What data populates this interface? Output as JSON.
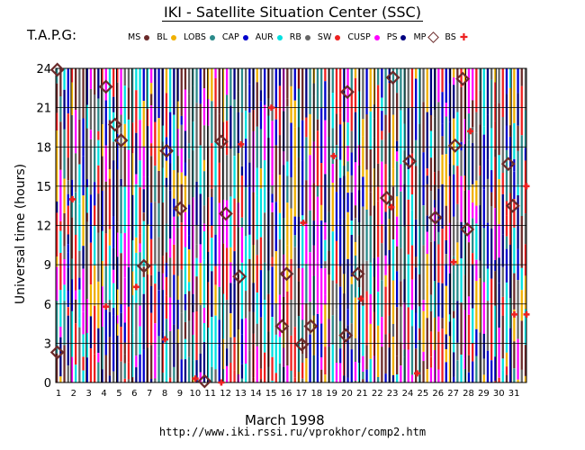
{
  "header": {
    "title": "IKI - Satellite Situation Center (SSC)",
    "code": "T.A.P.G:"
  },
  "legend": [
    {
      "label": "MS",
      "color": "#6b2a2a",
      "shape": "dot"
    },
    {
      "label": "BL",
      "color": "#f0b000",
      "shape": "dot"
    },
    {
      "label": "LOBS",
      "color": "#2a8a8a",
      "shape": "dot"
    },
    {
      "label": "CAP",
      "color": "#0000cc",
      "shape": "dot"
    },
    {
      "label": "AUR",
      "color": "#00e0e0",
      "shape": "dot"
    },
    {
      "label": "RB",
      "color": "#666666",
      "shape": "dot"
    },
    {
      "label": "SW",
      "color": "#ee2020",
      "shape": "dot"
    },
    {
      "label": "CUSP",
      "color": "#ff00ff",
      "shape": "dot"
    },
    {
      "label": "PS",
      "color": "#000080",
      "shape": "dot"
    },
    {
      "label": "MP",
      "color": "#6b2a2a",
      "shape": "diamond"
    },
    {
      "label": "BS",
      "color": "#ee2020",
      "shape": "plus"
    }
  ],
  "footer": {
    "xlabel": "March    1998",
    "url": "http://www.iki.rssi.ru/vprokhor/comp2.htm"
  },
  "chart_data": {
    "type": "scatter",
    "title": "IKI - Satellite Situation Center (SSC)",
    "xlabel": "March 1998",
    "ylabel": "Universal time (hours)",
    "xlim": [
      1,
      32
    ],
    "ylim": [
      0,
      24
    ],
    "x_ticks": [
      1,
      2,
      3,
      4,
      5,
      6,
      7,
      8,
      9,
      10,
      11,
      12,
      13,
      14,
      15,
      16,
      17,
      18,
      19,
      20,
      21,
      22,
      23,
      24,
      25,
      26,
      27,
      28,
      29,
      30,
      31
    ],
    "y_ticks": [
      0,
      3,
      6,
      9,
      12,
      15,
      18,
      21,
      24
    ],
    "region_colors": [
      "#6b2a2a",
      "#f0b000",
      "#2a8a8a",
      "#0000cc",
      "#00e0e0",
      "#666666",
      "#ee2020",
      "#ff00ff",
      "#000080"
    ],
    "series": [
      {
        "name": "MP",
        "marker": "diamond",
        "color": "#6b2a2a",
        "points": [
          [
            1.1,
            23.9
          ],
          [
            1.1,
            2.3
          ],
          [
            4.3,
            22.6
          ],
          [
            4.9,
            19.7
          ],
          [
            5.3,
            18.5
          ],
          [
            6.8,
            8.9
          ],
          [
            8.3,
            17.7
          ],
          [
            9.2,
            13.3
          ],
          [
            10.8,
            0.1
          ],
          [
            11.9,
            18.4
          ],
          [
            12.2,
            12.9
          ],
          [
            13.1,
            8.1
          ],
          [
            15.9,
            4.3
          ],
          [
            16.2,
            8.3
          ],
          [
            17.2,
            2.9
          ],
          [
            17.8,
            4.3
          ],
          [
            20.1,
            3.6
          ],
          [
            20.2,
            22.2
          ],
          [
            20.9,
            8.3
          ],
          [
            22.8,
            14.1
          ],
          [
            23.2,
            23.3
          ],
          [
            24.3,
            16.9
          ],
          [
            26.0,
            12.6
          ],
          [
            27.3,
            18.1
          ],
          [
            27.8,
            23.2
          ],
          [
            28.1,
            11.7
          ],
          [
            30.8,
            16.7
          ],
          [
            31.1,
            13.5
          ]
        ]
      },
      {
        "name": "BS",
        "marker": "plus",
        "color": "#ee2020",
        "points": [
          [
            2.1,
            14.0
          ],
          [
            4.3,
            5.8
          ],
          [
            6.3,
            7.3
          ],
          [
            8.2,
            3.3
          ],
          [
            10.2,
            0.3
          ],
          [
            11.9,
            0.0
          ],
          [
            13.2,
            18.2
          ],
          [
            15.2,
            21.0
          ],
          [
            17.3,
            12.2
          ],
          [
            19.3,
            17.3
          ],
          [
            21.1,
            6.4
          ],
          [
            23.1,
            13.4
          ],
          [
            24.8,
            0.7
          ],
          [
            27.2,
            9.2
          ],
          [
            28.3,
            19.2
          ],
          [
            31.2,
            5.2
          ],
          [
            32.0,
            15.0
          ],
          [
            32.0,
            5.2
          ]
        ]
      }
    ]
  }
}
